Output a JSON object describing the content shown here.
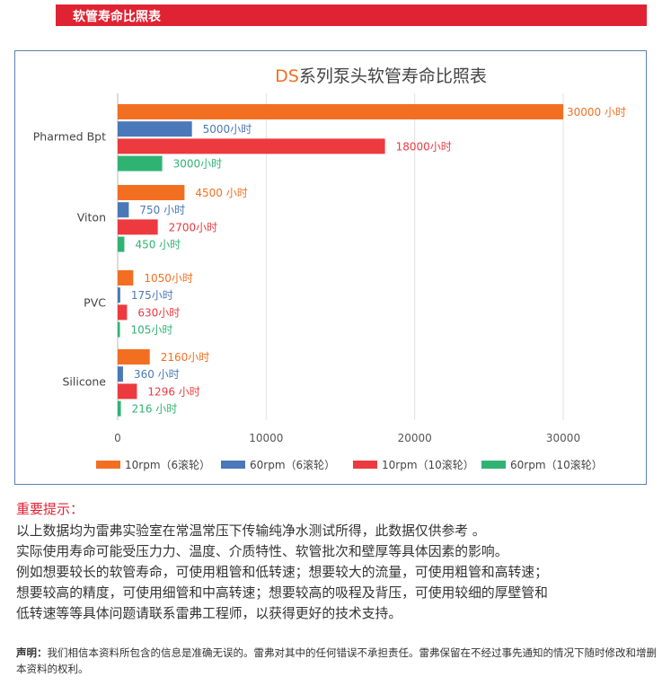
{
  "header": {
    "title": "软管寿命比照表"
  },
  "chart_data": {
    "type": "bar",
    "orientation": "horizontal",
    "title_prefix": "DS",
    "title_rest": "系列泵头软管寿命比照表",
    "categories": [
      "Pharmed Bpt",
      "Viton",
      "PVC",
      "Silicone"
    ],
    "series": [
      {
        "name": "10rpm（6滚轮）",
        "color": "#f26f22",
        "values": [
          30000,
          4500,
          1050,
          2160
        ],
        "labels": [
          "30000 小时",
          "4500 小时",
          "1050小时",
          "2160小时"
        ]
      },
      {
        "name": "60rpm（6滚轮）",
        "color": "#4a78b8",
        "values": [
          5000,
          750,
          175,
          360
        ],
        "labels": [
          "5000小时",
          "750 小时",
          "175小时",
          "360 小时"
        ]
      },
      {
        "name": "10rpm（10滚轮）",
        "color": "#ec3a3e",
        "values": [
          18000,
          2700,
          630,
          1296
        ],
        "labels": [
          "18000小时",
          "2700小时",
          "630小时",
          "1296 小时"
        ]
      },
      {
        "name": "60rpm（10滚轮）",
        "color": "#2fb373",
        "values": [
          3000,
          450,
          105,
          216
        ],
        "labels": [
          "3000小时",
          "450 小时",
          "105小时",
          "216 小时"
        ]
      }
    ],
    "xticks": [
      0,
      10000,
      20000,
      30000
    ],
    "xlim": [
      0,
      33000
    ],
    "grid": "vertical",
    "legend_position": "bottom"
  },
  "tips": {
    "title": "重要提示：",
    "lines": [
      "以上数据均为雷弗实验室在常温常压下传输纯净水测试所得，此数据仅供参考 。",
      "实际使用寿命可能受压力力、温度、介质特性、软管批次和壁厚等具体因素的影响。",
      "例如想要较长的软管寿命，可使用粗管和低转速；想要较大的流量，可使用粗管和高转速；",
      "想要较高的精度，可使用细管和中高转速；想要较高的吸程及背压，可使用较细的厚壁管和",
      "低转速等等具体问题请联系雷弗工程师，以获得更好的技术支持。"
    ]
  },
  "notice": {
    "label": "声明：",
    "text": "我们相信本资料所包含的信息是准确无误的。雷弗对其中的任何错误不承担责任。雷弗保留在不经过事先通知的情况下随时修改和增删本资料的权利。"
  }
}
